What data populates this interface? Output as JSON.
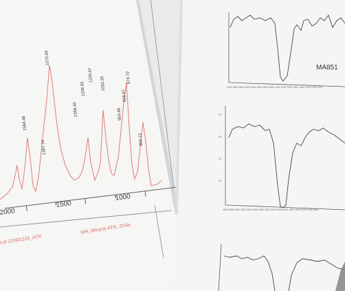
{
  "left_sheet": {
    "x_tick_labels": [
      "2000",
      "1500",
      "1000"
    ],
    "peak_labels": [
      "1072.84",
      "1584.48",
      "1367.74",
      "1268.43",
      "1236.93",
      "1226.67",
      "1052.25",
      "953.86",
      "918.87",
      "874.70",
      "804.13"
    ],
    "footer_left_text": "Lot 12N01218_ATR",
    "footer_right_text": "MH, Miracle ATR, ZnSe"
  },
  "right_sheet": {
    "sample_label": "MA851"
  },
  "colors": {
    "spectrum_line": "#d9534f",
    "axis": "#5b5b5b",
    "paper": "#f7f7f5",
    "background": "#e9ebed"
  }
}
